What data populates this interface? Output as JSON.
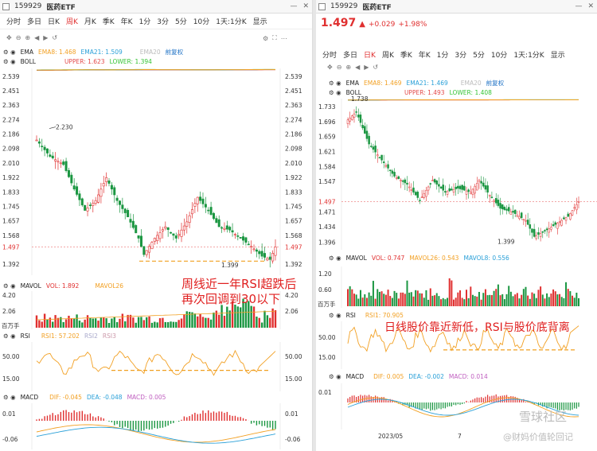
{
  "left": {
    "code": "159929",
    "name": "医药ETF",
    "tabs": [
      "分时",
      "多日",
      "日K",
      "周K",
      "月K",
      "季K",
      "年K",
      "1分",
      "3分",
      "5分",
      "10分",
      "1天:1分K",
      "显示"
    ],
    "active_tab": "周K",
    "ema": {
      "label": "EMA",
      "ema8": "EMA8: 1.468",
      "ema21": "EMA21: 1.509",
      "ema20": "EMA20",
      "fq": "前复权"
    },
    "boll": {
      "label": "BOLL",
      "upper": "UPPER: 1.623",
      "lower": "LOWER: 1.394"
    },
    "price_ticks": [
      "2.539",
      "2.451",
      "2.363",
      "2.274",
      "2.186",
      "2.098",
      "2.010",
      "1.922",
      "1.833",
      "1.745",
      "1.657",
      "1.568",
      "1.497",
      "1.392"
    ],
    "hi_label": "2.230",
    "lo_label": "1.399",
    "mavol": {
      "label": "MAVOL",
      "vol": "VOL: 1.892",
      "mavol26": "MAVOL26"
    },
    "vol_ticks": [
      "4.20",
      "2.06",
      "百万手"
    ],
    "rsi": {
      "label": "RSI",
      "rsi1": "RSI1: 57.202",
      "rsi2": "RSI2",
      "rsi3": "RSI3"
    },
    "rsi_ticks": [
      "50.00",
      "15.00"
    ],
    "macd": {
      "label": "MACD",
      "dif": "DIF: -0.045",
      "dea": "DEA: -0.048",
      "macd": "MACD: 0.005"
    },
    "macd_ticks": [
      "0.01",
      "-0.06"
    ],
    "annotation_line1": "周线近一年RSI超跌后",
    "annotation_line2": "再次回调到30以下"
  },
  "right": {
    "code": "159929",
    "name": "医药ETF",
    "price": "1.497",
    "change": "+0.029",
    "pct": "+1.98%",
    "tabs": [
      "分时",
      "多日",
      "日K",
      "周K",
      "季K",
      "年K",
      "1分",
      "3分",
      "5分",
      "10分",
      "1天:1分K",
      "显示"
    ],
    "active_tab": "日K",
    "ema": {
      "label": "EMA",
      "ema8": "EMA8: 1.469",
      "ema21": "EMA21: 1.469",
      "ema20": "EMA20",
      "fq": "前复权"
    },
    "boll": {
      "label": "BOLL",
      "upper": "UPPER: 1.493",
      "lower": "LOWER: 1.408"
    },
    "hi_label": "1.738",
    "lo_label": "1.399",
    "price_ticks": [
      "1.733",
      "1.696",
      "1.659",
      "1.621",
      "1.584",
      "1.547",
      "1.497",
      "1.471",
      "1.434",
      "1.396"
    ],
    "mavol": {
      "label": "MAVOL",
      "vol": "VOL: 0.747",
      "mavol26": "MAVOL26: 0.543",
      "mavol8": "MAVOL8: 0.556"
    },
    "vol_ticks": [
      "1.20",
      "0.60",
      "百万手"
    ],
    "rsi": {
      "label": "RSI",
      "rsi1": "RSI1: 70.905"
    },
    "rsi_ticks": [
      "50.00",
      "15.00"
    ],
    "macd": {
      "label": "MACD",
      "dif": "DIF: 0.005",
      "dea": "DEA: -0.002",
      "macd": "MACD: 0.014"
    },
    "macd_ticks": [
      "0.01"
    ],
    "dates": [
      "2023/05",
      "7"
    ],
    "annotation": "日线股价靠近新低，RSI与股价底背离",
    "watermark1": "雪球社区",
    "watermark2": "@财妈价值轮回记"
  },
  "colors": {
    "up": "#e03030",
    "down": "#1a9641",
    "ema8": "#f2a023",
    "ema21": "#2aa0d8",
    "boll_up": "#e34a4a",
    "boll_low": "#35c435",
    "ema_long": "#c86a6a",
    "dash": "#f0a020"
  }
}
